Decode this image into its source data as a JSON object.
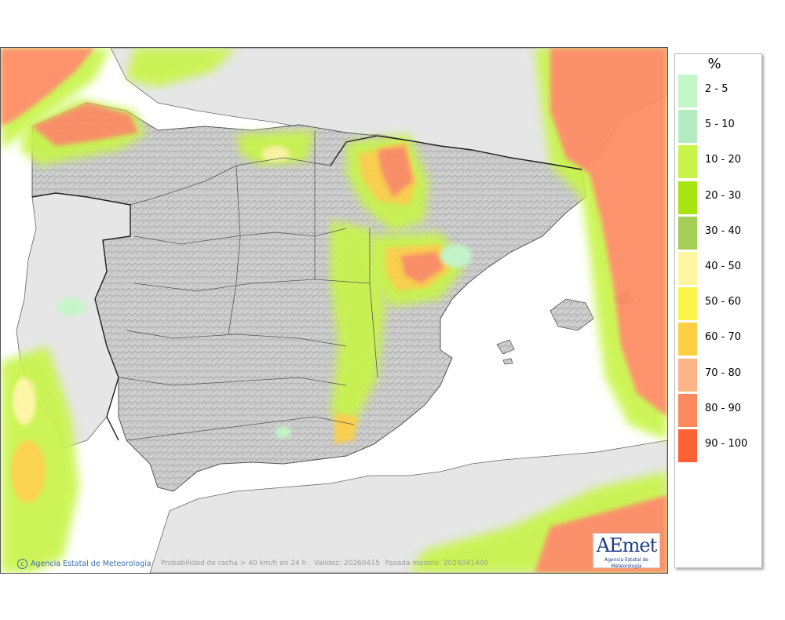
{
  "legend": {
    "title": "%",
    "items": [
      {
        "label": "2 - 5",
        "color": "#c3f7c8"
      },
      {
        "label": "5 - 10",
        "color": "#b5ebc0"
      },
      {
        "label": "10 - 20",
        "color": "#c8f449"
      },
      {
        "label": "20 - 30",
        "color": "#a8e314"
      },
      {
        "label": "30 - 40",
        "color": "#a3cf57"
      },
      {
        "label": "40 - 50",
        "color": "#fdf6a0"
      },
      {
        "label": "50 - 60",
        "color": "#fbf54b"
      },
      {
        "label": "60 - 70",
        "color": "#fdcf45"
      },
      {
        "label": "70 - 80",
        "color": "#fdb588"
      },
      {
        "label": "80 - 90",
        "color": "#fc8a60"
      },
      {
        "label": "90 - 100",
        "color": "#fd6235"
      }
    ]
  },
  "footer": {
    "credit": "Agencia Estatal de Meteorología",
    "caption_parts": [
      "Probabilidad de racha > 40 km/h en 24 h.",
      "Validez: 20260415",
      "Pasada modelo: 2026041400"
    ]
  },
  "logo": {
    "mark": "AEmet",
    "subtitle": "Agencia Estatal de Meteorología"
  }
}
